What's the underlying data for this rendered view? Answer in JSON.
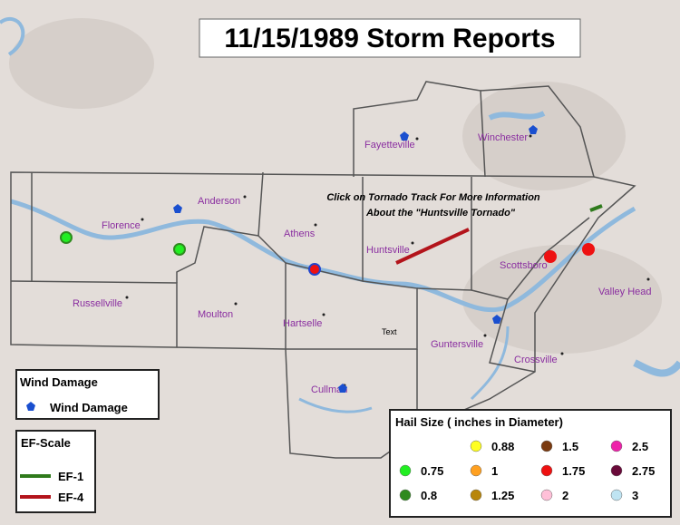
{
  "title": "11/15/1989 Storm Reports",
  "annotation": [
    "Click on Tornado Track For More Information",
    "About the \"Huntsville Tornado\""
  ],
  "cities": [
    "Fayetteville",
    "Winchester",
    "Anderson",
    "Florence",
    "Athens",
    "Huntsville",
    "Scottsboro",
    "Valley Head",
    "Russellville",
    "Moulton",
    "Hartselle",
    "Guntersville",
    "Crossville",
    "Cullman"
  ],
  "placeholder": "Text",
  "wind_legend": {
    "title": "Wind Damage",
    "items": [
      "Wind Damage"
    ]
  },
  "ef_legend": {
    "title": "EF-Scale",
    "items": [
      {
        "label": "EF-1",
        "color": "#2f7a1c"
      },
      {
        "label": "EF-4",
        "color": "#b3141b"
      }
    ]
  },
  "hail_legend": {
    "title": "Hail Size ( inches in Diameter)",
    "items": [
      {
        "label": "0.75",
        "color": "#22ee22"
      },
      {
        "label": "0.8",
        "color": "#2f8a1f"
      },
      {
        "label": "0.88",
        "color": "#ffff22"
      },
      {
        "label": "1",
        "color": "#ffa020"
      },
      {
        "label": "1.25",
        "color": "#b8860b"
      },
      {
        "label": "1.5",
        "color": "#7a3a10"
      },
      {
        "label": "1.75",
        "color": "#ee1111"
      },
      {
        "label": "2",
        "color": "#ffc0d8"
      },
      {
        "label": "2.5",
        "color": "#ee22aa"
      },
      {
        "label": "2.75",
        "color": "#6a0a3a"
      },
      {
        "label": "3",
        "color": "#bfe4f2"
      }
    ]
  }
}
